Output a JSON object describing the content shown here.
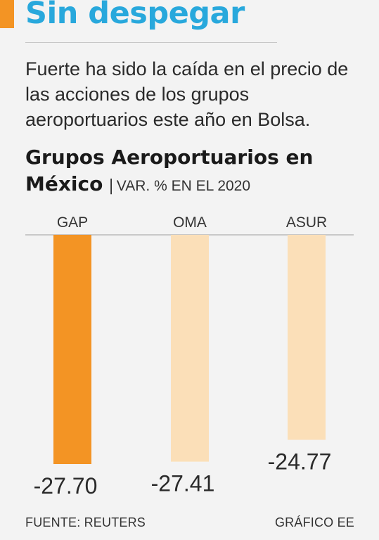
{
  "headline": "Sin despegar",
  "subtitle": "Fuerte ha sido la caída en el precio de las acciones de los grupos aeroportuarios este año en Bolsa.",
  "chart_data": {
    "type": "bar",
    "title": "Grupos Aeroportuarios en México",
    "title_separator": "|",
    "unit_label": "VAR. % EN EL 2020",
    "categories": [
      "GAP",
      "OMA",
      "ASUR"
    ],
    "values": [
      -27.7,
      -27.41,
      -24.77
    ],
    "value_labels": [
      "-27.70",
      "-27.41",
      "-24.77"
    ],
    "colors": [
      "#f39424",
      "#fbdfb8",
      "#fbdfb8"
    ],
    "ylim": [
      -27.7,
      0
    ],
    "grid": false,
    "legend": "none"
  },
  "footer": {
    "source": "FUENTE: REUTERS",
    "credit": "GRÁFICO EE"
  },
  "colors": {
    "headline": "#28a8dc",
    "accent": "#f39424",
    "bar_muted": "#fbdfb8",
    "background": "#f3f3f3"
  }
}
